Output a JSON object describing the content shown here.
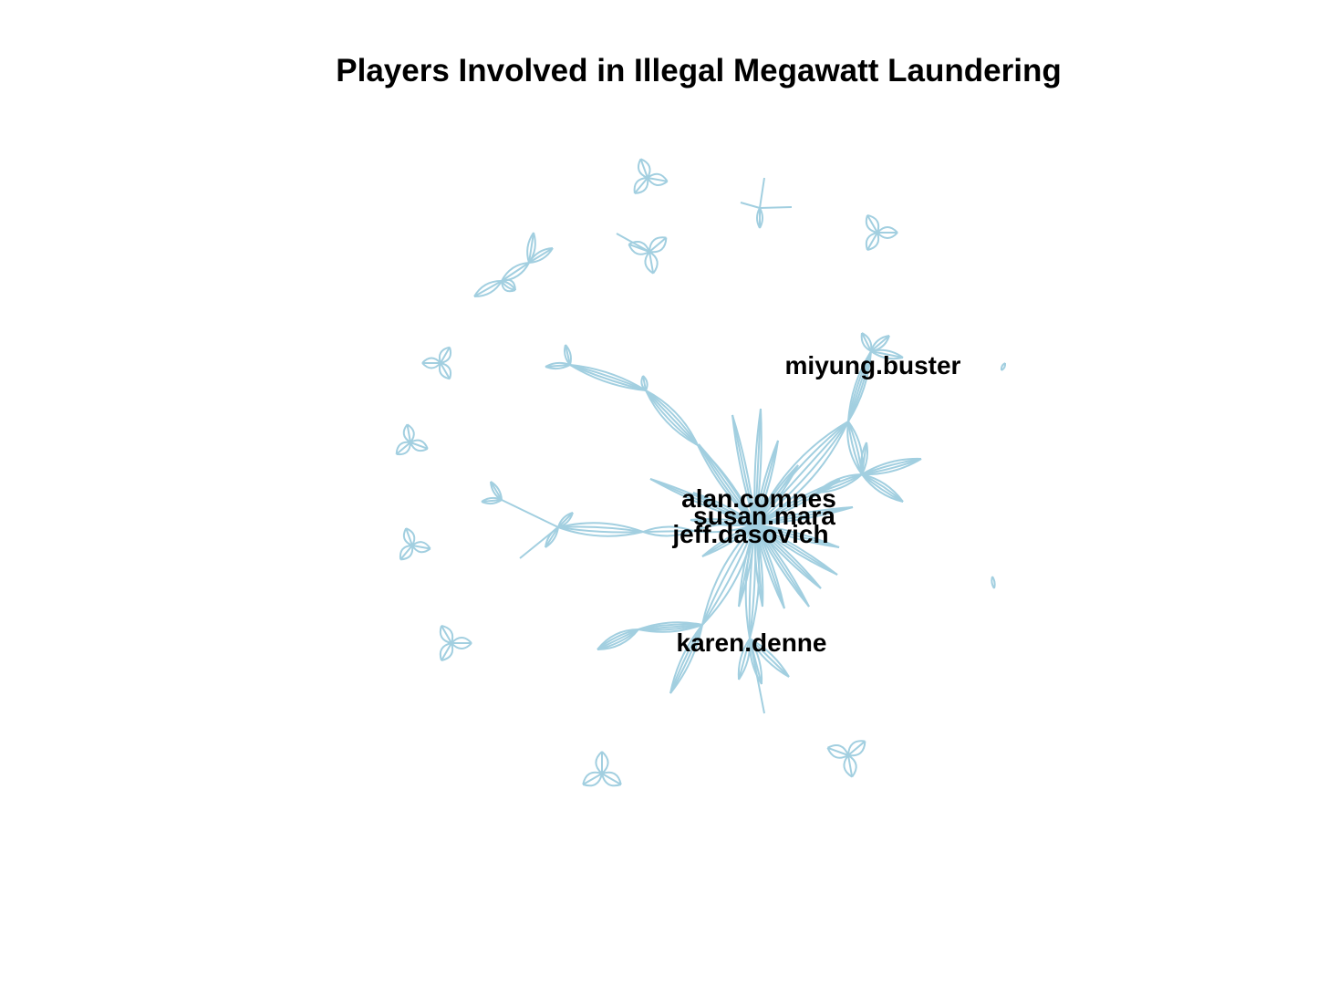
{
  "title": "Players Involved in Illegal Megawatt Laundering",
  "edge_color": "#a2cfe0",
  "label_color": "#000000",
  "labels": {
    "alan": "alan.comnes",
    "susan": "susan.mara",
    "jeff": "jeff.dasovich",
    "miyung": "miyung.buster",
    "karen": "karen.denne"
  }
}
